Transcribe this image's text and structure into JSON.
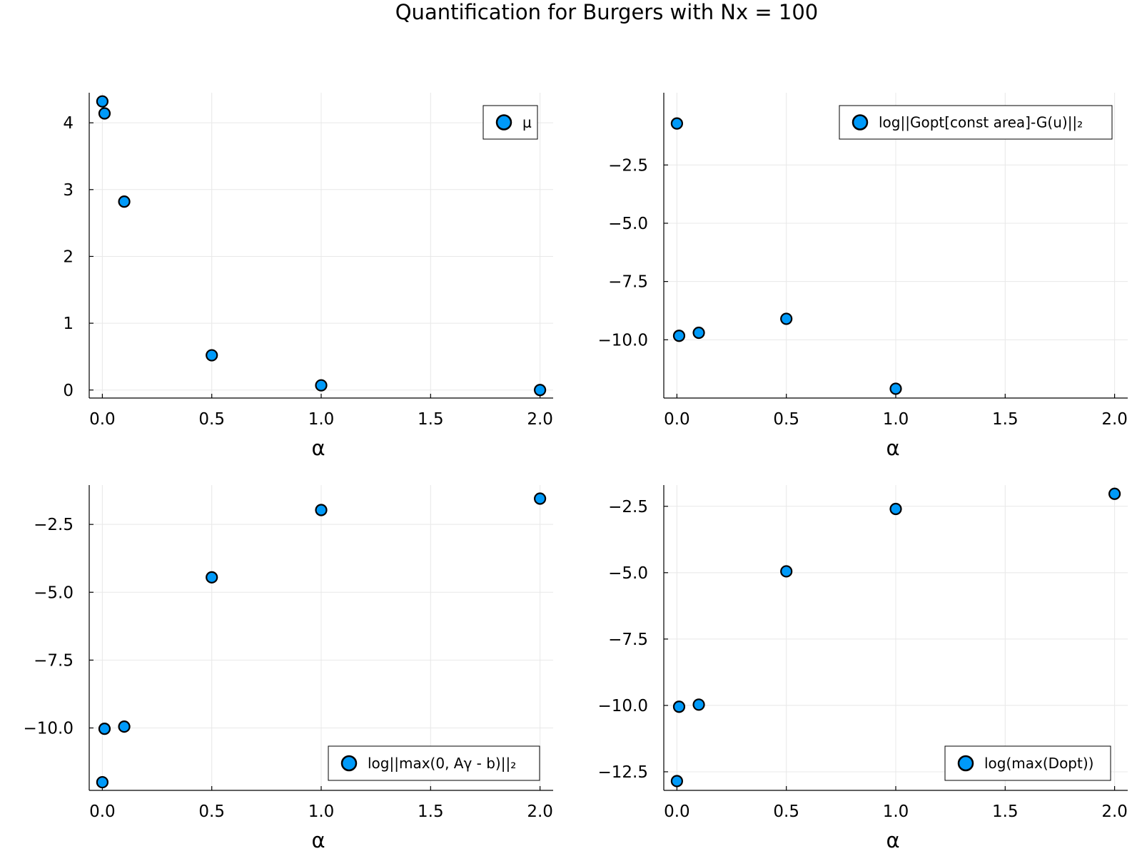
{
  "figure": {
    "title": "Quantification for Burgers with Nx = 100"
  },
  "colors": {
    "marker": "#009af9",
    "axis": "#000000",
    "grid": "#e8e8e8"
  },
  "chart_data": [
    {
      "type": "scatter",
      "position": "top-left",
      "xlabel": "α",
      "ylabel": "",
      "xlim": [
        -0.06,
        2.06
      ],
      "ylim": [
        -0.12,
        4.45
      ],
      "xticks": [
        0.0,
        0.5,
        1.0,
        1.5,
        2.0
      ],
      "xtick_labels": [
        "0.0",
        "0.5",
        "1.0",
        "1.5",
        "2.0"
      ],
      "yticks": [
        0,
        1,
        2,
        3,
        4
      ],
      "ytick_labels": [
        "0",
        "1",
        "2",
        "3",
        "4"
      ],
      "legend_position": "top-right",
      "series": [
        {
          "name": "μ",
          "x": [
            0.0,
            0.01,
            0.1,
            0.5,
            1.0,
            2.0
          ],
          "y": [
            4.32,
            4.14,
            2.82,
            0.52,
            0.07,
            0.0
          ]
        }
      ],
      "grid": true
    },
    {
      "type": "scatter",
      "position": "top-right",
      "xlabel": "α",
      "ylabel": "",
      "xlim": [
        -0.06,
        2.06
      ],
      "ylim": [
        -12.5,
        0.6
      ],
      "xticks": [
        0.0,
        0.5,
        1.0,
        1.5,
        2.0
      ],
      "xtick_labels": [
        "0.0",
        "0.5",
        "1.0",
        "1.5",
        "2.0"
      ],
      "yticks": [
        -10.0,
        -7.5,
        -5.0,
        -2.5
      ],
      "ytick_labels": [
        "−10.0",
        "−7.5",
        "−5.0",
        "−2.5"
      ],
      "legend_position": "top-right",
      "series": [
        {
          "name": "log||Gopt[const area]-G(u)||₂",
          "x": [
            0.0,
            0.01,
            0.1,
            0.5,
            1.0
          ],
          "y": [
            -0.72,
            -9.83,
            -9.7,
            -9.1,
            -12.1
          ]
        }
      ],
      "grid": true
    },
    {
      "type": "scatter",
      "position": "bottom-left",
      "xlabel": "α",
      "ylabel": "",
      "xlim": [
        -0.06,
        2.06
      ],
      "ylim": [
        -12.3,
        -1.05
      ],
      "xticks": [
        0.0,
        0.5,
        1.0,
        1.5,
        2.0
      ],
      "xtick_labels": [
        "0.0",
        "0.5",
        "1.0",
        "1.5",
        "2.0"
      ],
      "yticks": [
        -10.0,
        -7.5,
        -5.0,
        -2.5
      ],
      "ytick_labels": [
        "−10.0",
        "−7.5",
        "−5.0",
        "−2.5"
      ],
      "legend_position": "bottom-right",
      "series": [
        {
          "name": "log||max(0, Aγ - b)||₂",
          "x": [
            0.0,
            0.01,
            0.1,
            0.5,
            1.0,
            2.0
          ],
          "y": [
            -12.0,
            -10.03,
            -9.95,
            -4.45,
            -1.97,
            -1.55
          ]
        }
      ],
      "grid": true
    },
    {
      "type": "scatter",
      "position": "bottom-right",
      "xlabel": "α",
      "ylabel": "",
      "xlim": [
        -0.06,
        2.06
      ],
      "ylim": [
        -13.2,
        -1.7
      ],
      "xticks": [
        0.0,
        0.5,
        1.0,
        1.5,
        2.0
      ],
      "xtick_labels": [
        "0.0",
        "0.5",
        "1.0",
        "1.5",
        "2.0"
      ],
      "yticks": [
        -12.5,
        -10.0,
        -7.5,
        -5.0,
        -2.5
      ],
      "ytick_labels": [
        "−12.5",
        "−10.0",
        "−7.5",
        "−5.0",
        "−2.5"
      ],
      "legend_position": "bottom-right",
      "series": [
        {
          "name": "log(max(Dopt))",
          "x": [
            0.0,
            0.01,
            0.1,
            0.5,
            1.0,
            2.0
          ],
          "y": [
            -12.85,
            -10.05,
            -9.97,
            -4.95,
            -2.6,
            -2.03
          ]
        }
      ],
      "grid": true
    }
  ]
}
